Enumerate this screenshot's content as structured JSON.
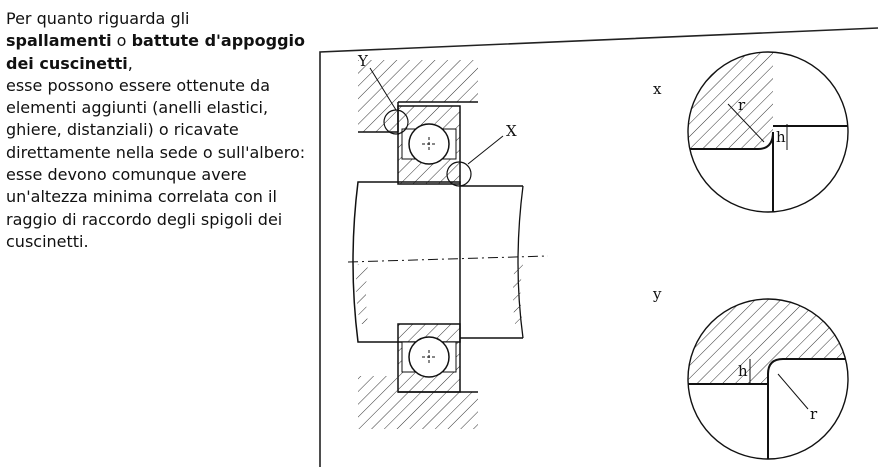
{
  "text": {
    "intro": "Per quanto riguarda gli",
    "bold1": "spallamenti",
    "conj": " o ",
    "bold2": "battute d'appoggio dei cuscinetti",
    "comma": ",",
    "rest": "esse possono essere ottenute da elementi aggiunti (anelli elastici, ghiere, distanziali) o ricavate direttamente nella sede o sull'albero: esse devono comunque avere un'altezza minima correlata con il raggio di raccordo degli spigoli dei cuscinetti."
  },
  "figure": {
    "label_Y": "Y",
    "label_X": "X",
    "label_x": "x",
    "label_y": "y",
    "label_r_top": "r",
    "label_h_top": "h",
    "label_r_bottom": "r",
    "label_h_bottom": "h"
  }
}
